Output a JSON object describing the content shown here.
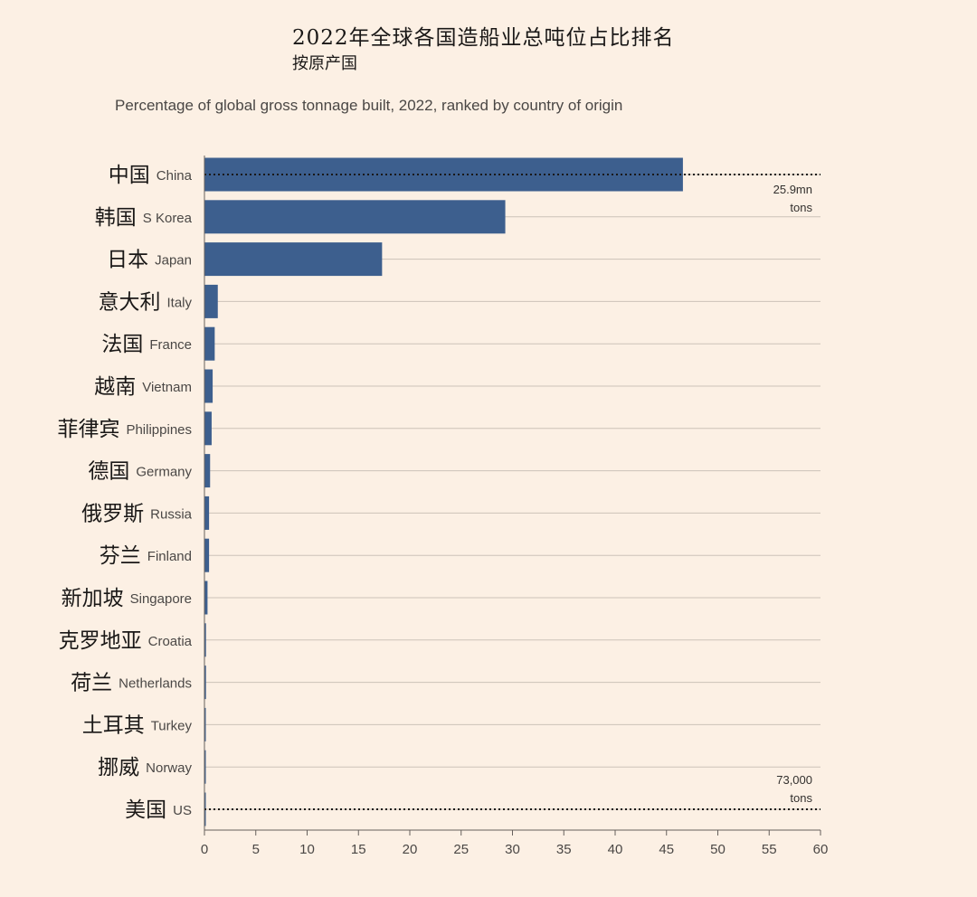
{
  "header": {
    "title": "2022年全球各国造船业总吨位占比排名",
    "subtitle_cn": "按原产国",
    "subtitle_en": "Percentage of global gross tonnage built, 2022, ranked by country of origin"
  },
  "chart_data": {
    "type": "bar",
    "orientation": "horizontal",
    "title": "2022年全球各国造船业总吨位占比排名",
    "subtitle": "Percentage of global gross tonnage built, 2022, ranked by country of origin",
    "categories": [
      {
        "cn": "中国",
        "en": "China"
      },
      {
        "cn": "韩国",
        "en": "S Korea"
      },
      {
        "cn": "日本",
        "en": "Japan"
      },
      {
        "cn": "意大利",
        "en": "Italy"
      },
      {
        "cn": "法国",
        "en": "France"
      },
      {
        "cn": "越南",
        "en": "Vietnam"
      },
      {
        "cn": "菲律宾",
        "en": "Philippines"
      },
      {
        "cn": "德国",
        "en": "Germany"
      },
      {
        "cn": "俄罗斯",
        "en": "Russia"
      },
      {
        "cn": "芬兰",
        "en": "Finland"
      },
      {
        "cn": "新加坡",
        "en": "Singapore"
      },
      {
        "cn": "克罗地亚",
        "en": "Croatia"
      },
      {
        "cn": "荷兰",
        "en": "Netherlands"
      },
      {
        "cn": "土耳其",
        "en": "Turkey"
      },
      {
        "cn": "挪威",
        "en": "Norway"
      },
      {
        "cn": "美国",
        "en": "US"
      }
    ],
    "values": [
      46.6,
      29.3,
      17.3,
      1.3,
      1.0,
      0.8,
      0.7,
      0.55,
      0.45,
      0.45,
      0.3,
      0.15,
      0.15,
      0.12,
      0.1,
      0.1
    ],
    "xlim": [
      0,
      60
    ],
    "xticks": [
      0,
      5,
      10,
      15,
      20,
      25,
      30,
      35,
      40,
      45,
      50,
      55,
      60
    ],
    "grid": true,
    "bar_color": "#3d5f8e",
    "annotations": [
      {
        "category": "China",
        "line1": "25.9mn",
        "line2": "tons",
        "style": "dotted-line"
      },
      {
        "category": "US",
        "line1": "73,000",
        "line2": "tons",
        "style": "dotted-line"
      }
    ]
  }
}
